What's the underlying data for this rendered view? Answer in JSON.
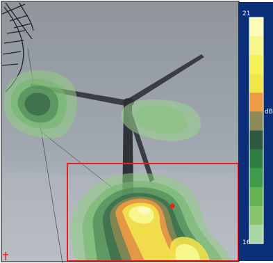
{
  "scale": {
    "max_label": "21",
    "unit_label": "dB",
    "min_label": "16",
    "colors": [
      "#fbfbbb",
      "#f7f68a",
      "#f4f257",
      "#f0e64a",
      "#ef9a45",
      "#8b8b59",
      "#2f5a3f",
      "#2f7f45",
      "#3f9a4a",
      "#66b250",
      "#88c66d",
      "#a8d7a4"
    ]
  },
  "markers": {
    "selection_color": "#e8201f",
    "source_point_color": "#e8201f"
  }
}
